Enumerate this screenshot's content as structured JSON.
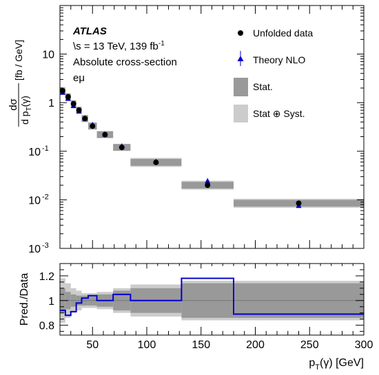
{
  "annotations": {
    "experiment": "ATLAS",
    "energy_lumi_prefix": "\\s = 13 TeV, 139 fb",
    "energy_lumi_sup": "-1",
    "measurement": "Absolute cross-section",
    "channel": "eμ"
  },
  "legend": {
    "data": "Unfolded data",
    "theory": "Theory NLO",
    "stat": "Stat.",
    "syst": "Stat ⊕ Syst."
  },
  "colors": {
    "stat_band": "#999999",
    "syst_band": "#cccccc",
    "theory": "#0000cc",
    "data": "#000000"
  },
  "chart_data": [
    {
      "type": "scatter",
      "panel": "main",
      "ylabel": {
        "frac_num": "dσ",
        "frac_den": "d p",
        "den_sub": "T",
        "den_rest": "(γ)",
        "unit": "[fb / GeV]"
      },
      "xlim": [
        20,
        300
      ],
      "ylim": [
        0.001,
        100
      ],
      "yscale": "log",
      "y_ticks": [
        {
          "v": 10,
          "label": "10",
          "sup": ""
        },
        {
          "v": 1,
          "label": "1",
          "sup": ""
        },
        {
          "v": 0.1,
          "label": "10",
          "sup": "-1"
        },
        {
          "v": 0.01,
          "label": "10",
          "sup": "-2"
        },
        {
          "v": 0.001,
          "label": "10",
          "sup": "-3"
        }
      ],
      "bins": [
        {
          "lo": 20,
          "hi": 25,
          "data": 1.75,
          "theory": 1.6,
          "stat": 0.1,
          "syst": 0.18
        },
        {
          "lo": 25,
          "hi": 30,
          "data": 1.32,
          "theory": 1.2,
          "stat": 0.07,
          "syst": 0.14
        },
        {
          "lo": 30,
          "hi": 35,
          "data": 0.95,
          "theory": 0.85,
          "stat": 0.05,
          "syst": 0.1
        },
        {
          "lo": 35,
          "hi": 40,
          "data": 0.7,
          "theory": 0.66,
          "stat": 0.04,
          "syst": 0.08
        },
        {
          "lo": 40,
          "hi": 46,
          "data": 0.47,
          "theory": 0.47,
          "stat": 0.04,
          "syst": 0.06
        },
        {
          "lo": 46,
          "hi": 54,
          "data": 0.33,
          "theory": 0.345,
          "stat": 0.04,
          "syst": 0.06
        },
        {
          "lo": 54,
          "hi": 69,
          "data": 0.22,
          "theory": 0.22,
          "stat": 0.05,
          "syst": 0.07
        },
        {
          "lo": 69,
          "hi": 85,
          "data": 0.12,
          "theory": 0.125,
          "stat": 0.08,
          "syst": 0.1
        },
        {
          "lo": 85,
          "hi": 132,
          "data": 0.059,
          "theory": 0.06,
          "stat": 0.1,
          "syst": 0.13
        },
        {
          "lo": 132,
          "hi": 180,
          "data": 0.02,
          "theory": 0.024,
          "stat": 0.14,
          "syst": 0.16
        },
        {
          "lo": 180,
          "hi": 300,
          "data": 0.0085,
          "theory": 0.0075,
          "stat": 0.14,
          "syst": 0.16
        }
      ]
    },
    {
      "type": "line",
      "panel": "ratio",
      "ylabel": "Pred./Data",
      "xlabel": {
        "main": "p",
        "sub": "T",
        "rest": "(γ) [GeV]"
      },
      "xlim": [
        20,
        300
      ],
      "ylim": [
        0.72,
        1.3
      ],
      "x_ticks": [
        50,
        100,
        150,
        200,
        250,
        300
      ],
      "y_ticks": [
        0.8,
        1,
        1.2
      ],
      "y_tick_labels": [
        "0.8",
        "1",
        "1.2"
      ],
      "ratio_values": [
        0.92,
        0.88,
        0.91,
        0.98,
        1.02,
        1.04,
        1.0,
        1.05,
        1.0,
        1.18,
        0.89
      ]
    }
  ]
}
